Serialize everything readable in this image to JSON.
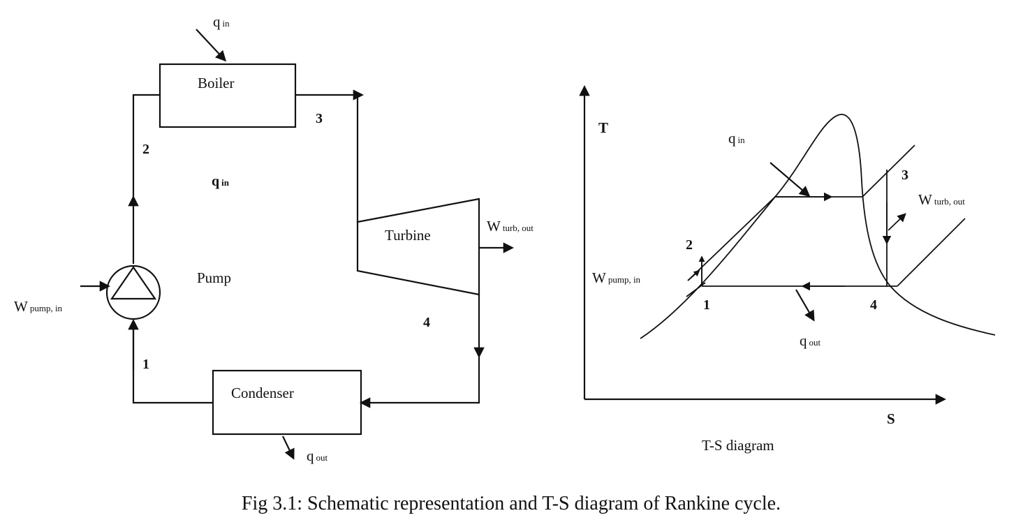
{
  "schematic": {
    "boiler": "Boiler",
    "turbine": "Turbine",
    "pump": "Pump",
    "condenser": "Condenser",
    "state_1": "1",
    "state_2": "2",
    "state_3": "3",
    "state_4": "4",
    "q_in_top": {
      "main": "q",
      "sub": "in"
    },
    "q_in_mid": {
      "main": "q",
      "sub": "in"
    },
    "q_out": {
      "main": "q",
      "sub": "out"
    },
    "w_turb_out": {
      "main": "W",
      "sub": "turb, out"
    },
    "w_pump_in": {
      "main": "W",
      "sub": "pump, in"
    }
  },
  "ts_diagram": {
    "t_axis": "T",
    "s_axis": "S",
    "title": "T-S diagram",
    "state_1": "1",
    "state_2": "2",
    "state_3": "3",
    "state_4": "4",
    "q_in": {
      "main": "q",
      "sub": "in"
    },
    "q_out": {
      "main": "q",
      "sub": "out"
    },
    "w_turb_out": {
      "main": "W",
      "sub": "turb, out"
    },
    "w_pump_in": {
      "main": "W",
      "sub": "pump, in"
    }
  },
  "caption": "Fig 3.1: Schematic representation and T-S diagram of Rankine cycle."
}
